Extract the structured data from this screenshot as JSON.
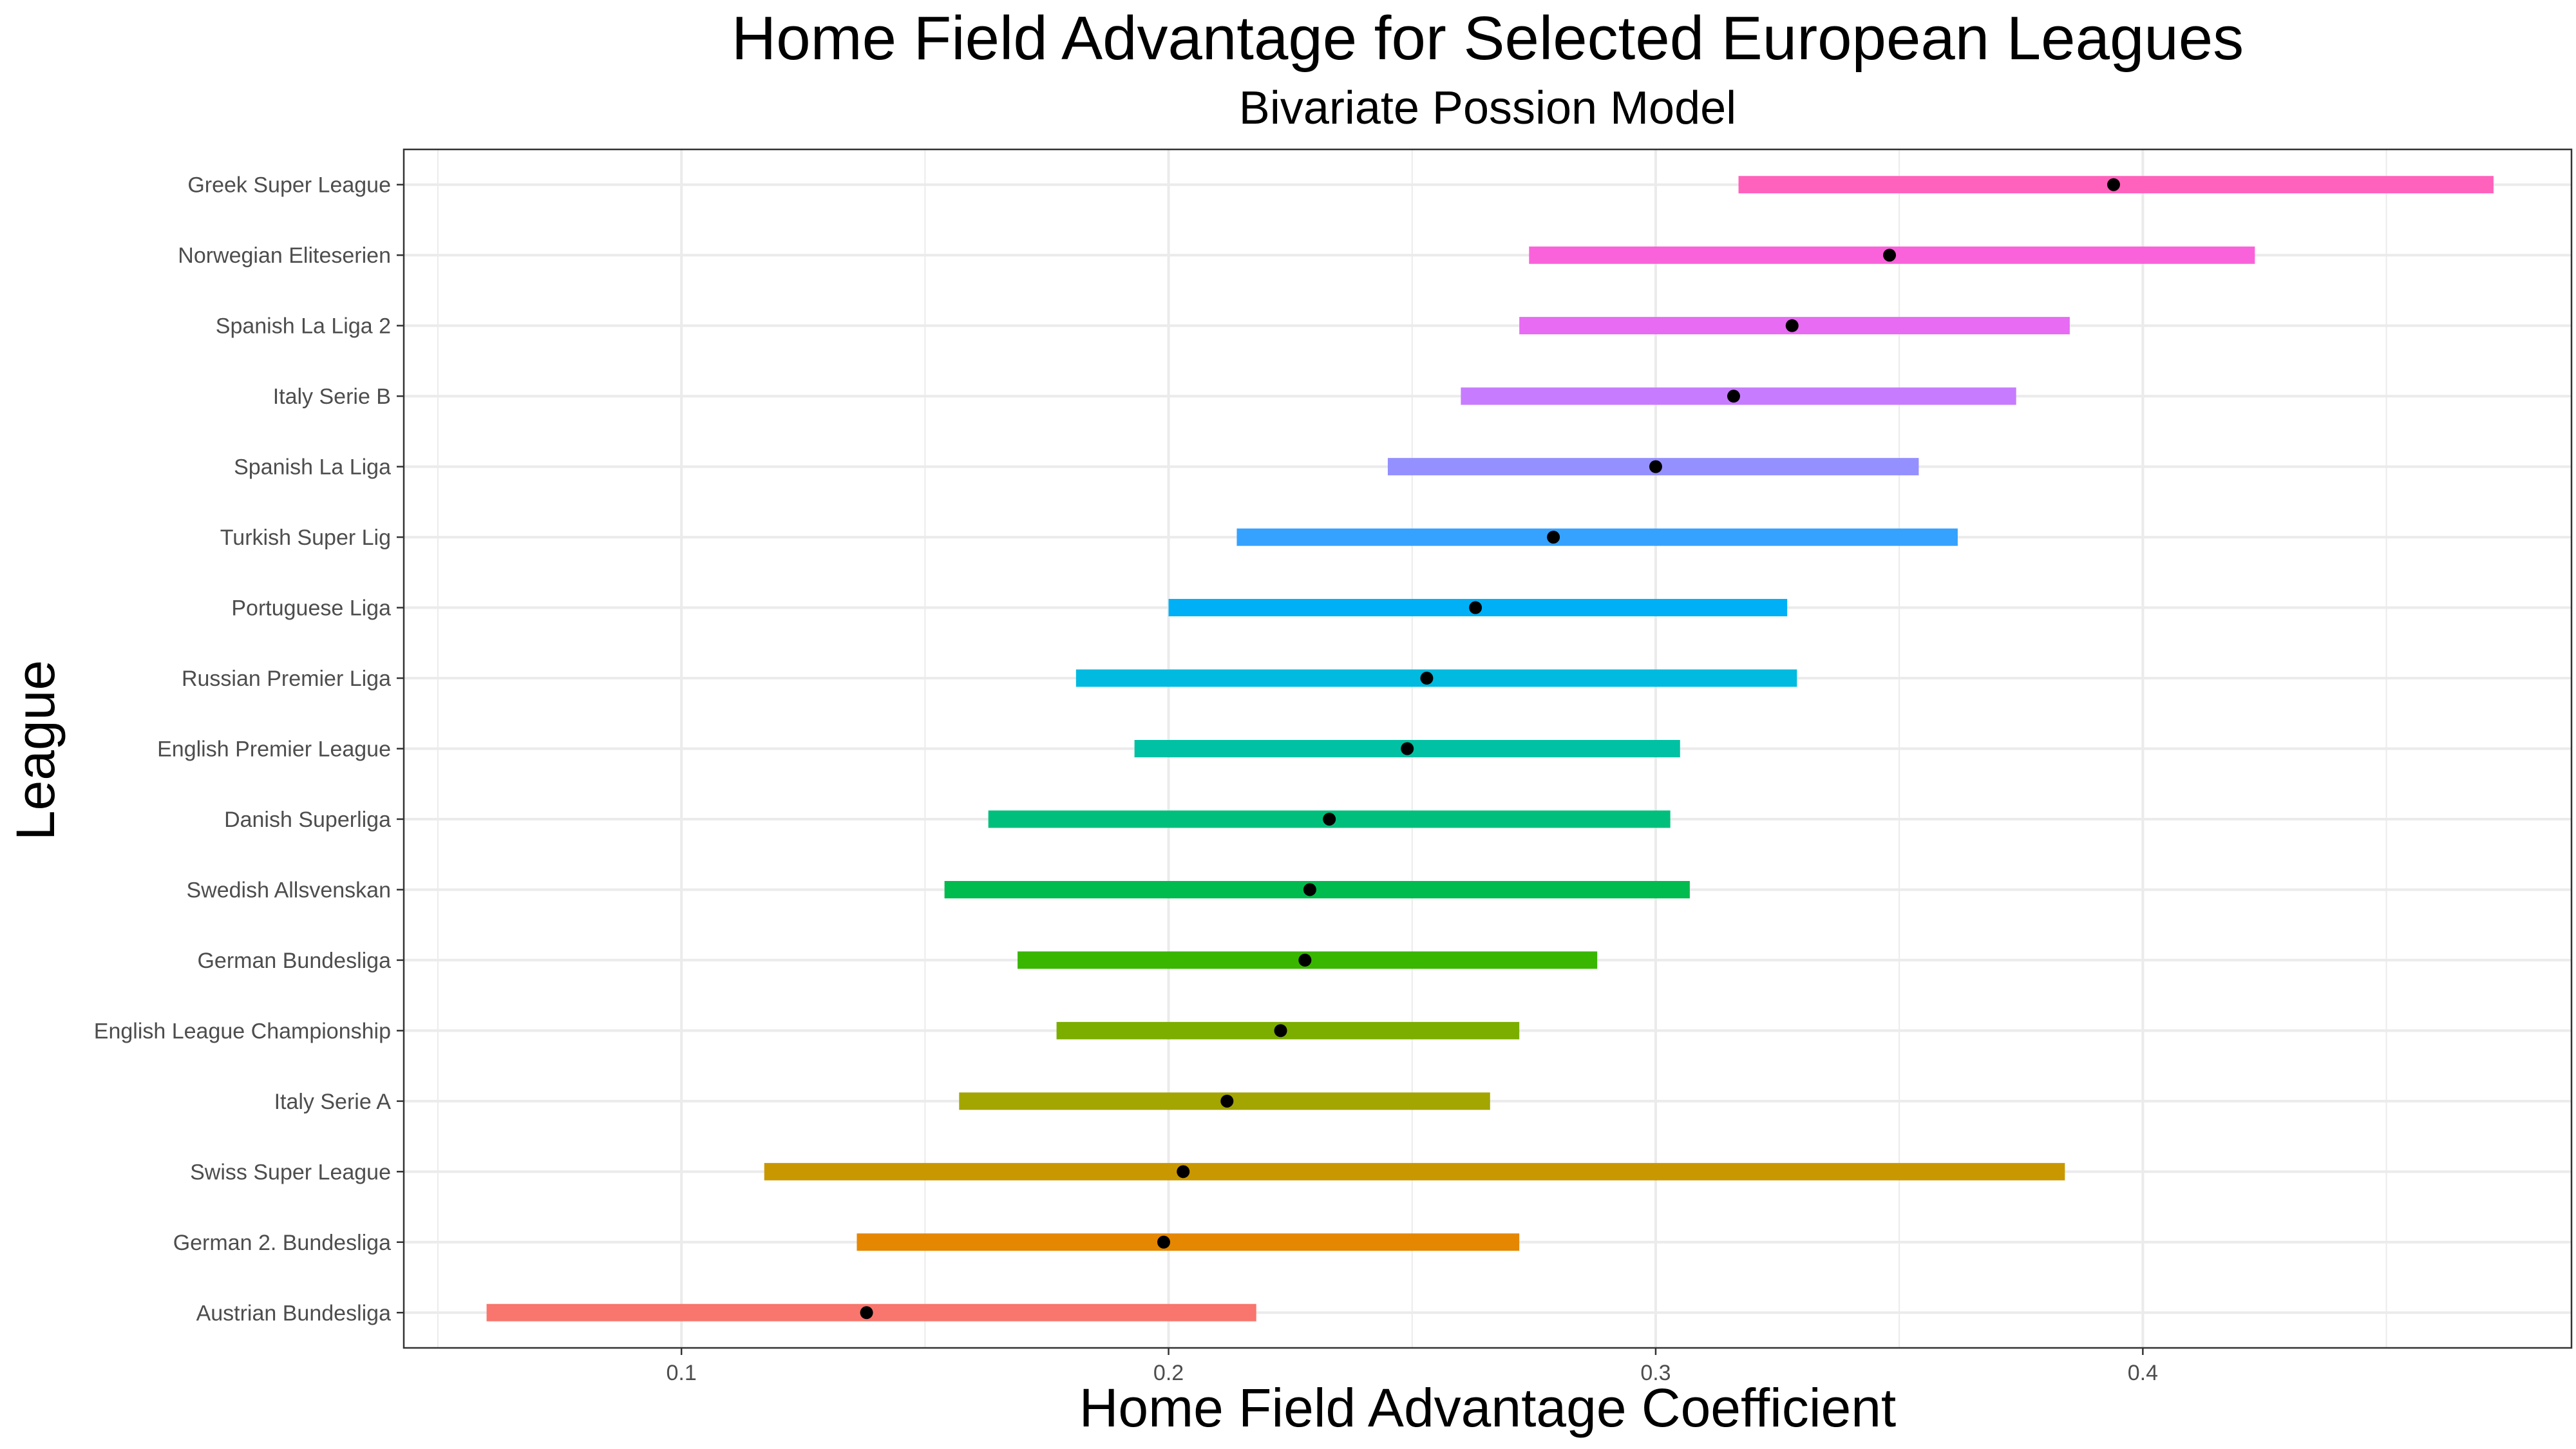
{
  "chart_data": {
    "type": "interval",
    "title": "Home Field Advantage for Selected European Leagues",
    "subtitle": "Bivariate Possion Model",
    "xlabel": "Home Field Advantage Coefficient",
    "ylabel": "League",
    "xlim": [
      0.043,
      0.488
    ],
    "x_ticks": [
      0.1,
      0.2,
      0.3,
      0.4
    ],
    "x_tick_labels": [
      "0.1",
      "0.2",
      "0.3",
      "0.4"
    ],
    "grid": true,
    "legend": "none",
    "point_color": "#000000",
    "categories": [
      "Austrian Bundesliga",
      "German 2. Bundesliga",
      "Swiss Super League",
      "Italy Serie A",
      "English League Championship",
      "German Bundesliga",
      "Swedish Allsvenskan",
      "Danish Superliga",
      "English Premier League",
      "Russian Premier Liga",
      "Portuguese Liga",
      "Turkish Super Lig",
      "Spanish La Liga",
      "Italy Serie B",
      "Spanish La Liga 2",
      "Norwegian Eliteserien",
      "Greek Super League"
    ],
    "series": [
      {
        "category": "Austrian Bundesliga",
        "low": 0.06,
        "estimate": 0.138,
        "high": 0.218,
        "color": "#F8766D"
      },
      {
        "category": "German 2. Bundesliga",
        "low": 0.136,
        "estimate": 0.199,
        "high": 0.272,
        "color": "#E58700"
      },
      {
        "category": "Swiss Super League",
        "low": 0.117,
        "estimate": 0.203,
        "high": 0.384,
        "color": "#C99800"
      },
      {
        "category": "Italy Serie A",
        "low": 0.157,
        "estimate": 0.212,
        "high": 0.266,
        "color": "#A3A500"
      },
      {
        "category": "English League Championship",
        "low": 0.177,
        "estimate": 0.223,
        "high": 0.272,
        "color": "#7CAE00"
      },
      {
        "category": "German Bundesliga",
        "low": 0.169,
        "estimate": 0.228,
        "high": 0.288,
        "color": "#39B600"
      },
      {
        "category": "Swedish Allsvenskan",
        "low": 0.154,
        "estimate": 0.229,
        "high": 0.307,
        "color": "#00BB4E"
      },
      {
        "category": "Danish Superliga",
        "low": 0.163,
        "estimate": 0.233,
        "high": 0.303,
        "color": "#00BF7D"
      },
      {
        "category": "English Premier League",
        "low": 0.193,
        "estimate": 0.249,
        "high": 0.305,
        "color": "#00C1A3"
      },
      {
        "category": "Russian Premier Liga",
        "low": 0.181,
        "estimate": 0.253,
        "high": 0.329,
        "color": "#00BAE0"
      },
      {
        "category": "Portuguese Liga",
        "low": 0.2,
        "estimate": 0.263,
        "high": 0.327,
        "color": "#00B0F6"
      },
      {
        "category": "Turkish Super Lig",
        "low": 0.214,
        "estimate": 0.279,
        "high": 0.362,
        "color": "#35A2FF"
      },
      {
        "category": "Spanish La Liga",
        "low": 0.245,
        "estimate": 0.3,
        "high": 0.354,
        "color": "#9590FF"
      },
      {
        "category": "Italy Serie B",
        "low": 0.26,
        "estimate": 0.316,
        "high": 0.374,
        "color": "#C77CFF"
      },
      {
        "category": "Spanish La Liga 2",
        "low": 0.272,
        "estimate": 0.328,
        "high": 0.385,
        "color": "#E76BF3"
      },
      {
        "category": "Norwegian Eliteserien",
        "low": 0.274,
        "estimate": 0.348,
        "high": 0.423,
        "color": "#FA62DB"
      },
      {
        "category": "Greek Super League",
        "low": 0.317,
        "estimate": 0.394,
        "high": 0.472,
        "color": "#FF62BC"
      }
    ]
  }
}
